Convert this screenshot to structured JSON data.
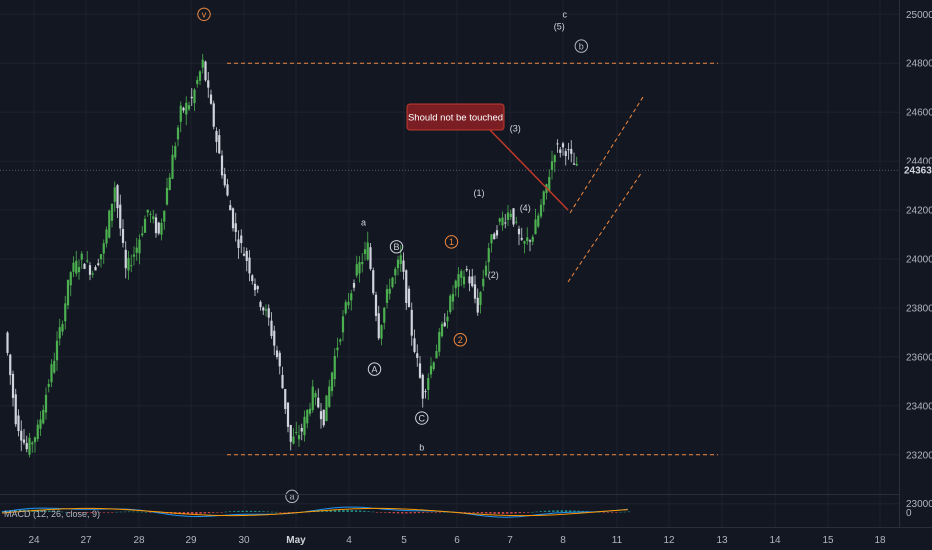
{
  "chart_data": {
    "type": "candlestick",
    "symbol_price_axis": {
      "ticks": [
        23000,
        23200,
        23400,
        23600,
        23800,
        24000,
        24200,
        24400,
        24600,
        24800,
        25000
      ],
      "current_price": 24363,
      "current_price_label": "24363"
    },
    "x_axis": {
      "ticks": [
        "24",
        "27",
        "28",
        "29",
        "30",
        "May",
        "4",
        "5",
        "6",
        "7",
        "8",
        "11",
        "12",
        "13",
        "14",
        "15",
        "18"
      ],
      "bold": [
        "May"
      ]
    },
    "levels": [
      {
        "name": "resistance",
        "value": 24800,
        "color": "#f0883e"
      },
      {
        "name": "support",
        "value": 23200,
        "color": "#f0883e"
      }
    ],
    "candles_outline": [
      23700,
      23350,
      23220,
      23300,
      23500,
      23700,
      23950,
      24000,
      23950,
      24050,
      24300,
      23950,
      24050,
      24200,
      24100,
      24350,
      24600,
      24650,
      24800,
      24550,
      24300,
      24100,
      24000,
      23850,
      23750,
      23550,
      23250,
      23300,
      23450,
      23350,
      23600,
      23800,
      23950,
      24050,
      23700,
      23900,
      24000,
      23700,
      23450,
      23600,
      23750,
      23900,
      23950,
      23800,
      24050,
      24150,
      24200,
      24050,
      24100,
      24250,
      24450,
      24450,
      24363
    ],
    "annotations": [
      {
        "label": "v",
        "value": 25000,
        "x_index": 18.0,
        "style": "circle",
        "color": "#f0883e"
      },
      {
        "label": "a",
        "value": 23030,
        "x_index": 26.0,
        "style": "circle",
        "color": "#b2b5be"
      },
      {
        "label": "a",
        "value": 24150,
        "x_index": 32.5,
        "style": "plain",
        "color": "#d1d4dc"
      },
      {
        "label": "B",
        "value": 24050,
        "x_index": 35.5,
        "style": "circle",
        "color": "#d1d4dc"
      },
      {
        "label": "A",
        "value": 23550,
        "x_index": 33.5,
        "style": "circle",
        "color": "#d1d4dc"
      },
      {
        "label": "C",
        "value": 23350,
        "x_index": 37.8,
        "style": "circle",
        "color": "#d1d4dc"
      },
      {
        "label": "b",
        "value": 23230,
        "x_index": 37.8,
        "style": "plain",
        "color": "#d1d4dc"
      },
      {
        "label": "1",
        "value": 24070,
        "x_index": 40.5,
        "style": "circle",
        "color": "#f0883e"
      },
      {
        "label": "2",
        "value": 23670,
        "x_index": 41.3,
        "style": "circle",
        "color": "#f0883e"
      },
      {
        "label": "(1)",
        "value": 24270,
        "x_index": 43.0,
        "style": "plain",
        "color": "#d1d4dc"
      },
      {
        "label": "(2)",
        "value": 23935,
        "x_index": 44.3,
        "style": "plain",
        "color": "#d1d4dc"
      },
      {
        "label": "(3)",
        "value": 24535,
        "x_index": 46.3,
        "style": "plain",
        "color": "#d1d4dc"
      },
      {
        "label": "(4)",
        "value": 24210,
        "x_index": 47.2,
        "style": "plain",
        "color": "#d1d4dc"
      },
      {
        "label": "(5)",
        "value": 24950,
        "x_index": 50.3,
        "style": "plain",
        "color": "#d1d4dc"
      },
      {
        "label": "c",
        "value": 25000,
        "x_index": 50.8,
        "style": "plain",
        "color": "#d1d4dc"
      },
      {
        "label": "b",
        "value": 24870,
        "x_index": 52.3,
        "style": "circle",
        "color": "#b2b5be"
      }
    ],
    "callout": {
      "text": "Should not be touched",
      "color": "#7b1e24",
      "border": "#c0392b"
    },
    "indicator": {
      "name": "MACD (12, 26, close, 9)"
    }
  },
  "colors": {
    "background": "#131722",
    "up": "#26a69a",
    "up_green": "#4caf50",
    "down": "#d1d4dc",
    "grid": "#1e222d",
    "macd_line": "#2196f3",
    "signal_line": "#ff9800"
  }
}
